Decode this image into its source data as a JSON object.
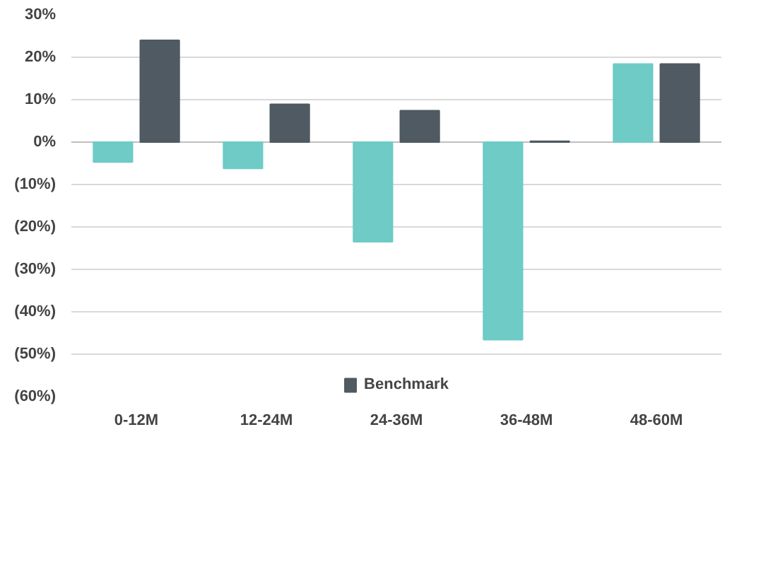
{
  "chart_data": {
    "type": "bar",
    "categories": [
      "0-12M",
      "12-24M",
      "24-36M",
      "36-48M",
      "48-60M"
    ],
    "series": [
      {
        "color": "#6ecbc6",
        "values": [
          -4.7,
          -6.2,
          -23.5,
          -46.6,
          18.4
        ]
      },
      {
        "name": "Benchmark",
        "color": "#4f5a62",
        "values": [
          24,
          8.9,
          7.4,
          0.2,
          18.4
        ]
      }
    ],
    "ylim": [
      -60,
      30
    ],
    "yticks": [
      {
        "value": -60,
        "label": "(60%)"
      },
      {
        "value": -50,
        "label": "(50%)"
      },
      {
        "value": -40,
        "label": "(40%)"
      },
      {
        "value": -30,
        "label": "(30%)"
      },
      {
        "value": -20,
        "label": "(20%)"
      },
      {
        "value": -10,
        "label": "(10%)"
      },
      {
        "value": 0,
        "label": "0%"
      },
      {
        "value": 10,
        "label": "10%"
      },
      {
        "value": 20,
        "label": "20%"
      },
      {
        "value": 30,
        "label": "30%"
      }
    ],
    "grid": "y",
    "legend": "bottom"
  }
}
